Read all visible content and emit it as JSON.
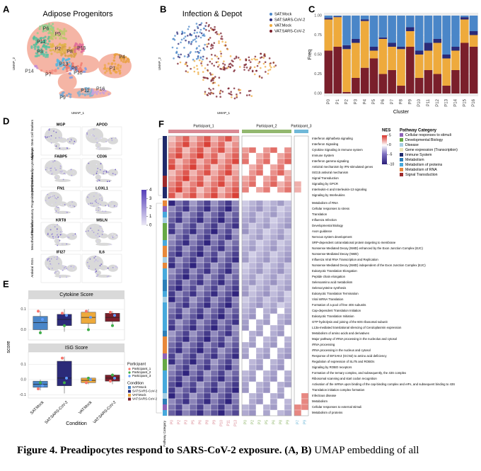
{
  "figure": {
    "A": {
      "label": "A",
      "title": "Adipose Progenitors",
      "xlabel": "UMAP_1",
      "ylabel": "UMAP_2",
      "clusters": [
        "P6",
        "P5",
        "P11",
        "P3",
        "P2",
        "P8",
        "P15",
        "P4",
        "P13",
        "P0",
        "P10",
        "P14",
        "P7",
        "P1",
        "P9",
        "P12",
        "P16"
      ]
    },
    "B": {
      "label": "B",
      "title": "Infection & Depot",
      "xlabel": "UMAP_1",
      "ylabel": "UMAP_2"
    },
    "C": {
      "label": "C"
    },
    "D": {
      "label": "D",
      "genes": [
        "MGP",
        "APOD",
        "FABP5",
        "CD36",
        "FN1",
        "LOXL1",
        "KRT8",
        "MSLN",
        "IFI27",
        "IL6"
      ],
      "groups": [
        "Adipocyte Stem Cell Markers",
        "Committed Preadipocyte Markers",
        "Fibro-inflammatory Progenitor (FIP) Markers",
        "Mesothelial Markers",
        "Antiviral ISGs"
      ],
      "colorbar": {
        "range": [
          0,
          4
        ],
        "ticks": [
          0,
          1,
          2,
          3,
          4
        ]
      }
    },
    "E": {
      "label": "E",
      "ylabel": "score",
      "xlabel": "Condition",
      "participant_title": "Participant",
      "condition_title": "Condition",
      "participants": [
        {
          "name": "Participant_1",
          "color": "#f8766d"
        },
        {
          "name": "Participant_2",
          "color": "#3fae49"
        },
        {
          "name": "Participant_3",
          "color": "#619cff"
        }
      ]
    },
    "F": {
      "label": "F",
      "participants": [
        {
          "name": "Participant_1",
          "color": "#d98a94",
          "columns": [
            "P0",
            "P2",
            "P3",
            "P5",
            "P6",
            "P8",
            "P9",
            "P10",
            "P11",
            "P13"
          ]
        },
        {
          "name": "Participant_2",
          "color": "#93b86f",
          "columns": [
            "P0",
            "P2",
            "P3",
            "P5",
            "P6",
            "P8",
            "P9"
          ]
        },
        {
          "name": "Participant_3",
          "color": "#6fb8d8",
          "columns": [
            "P7",
            "P9"
          ]
        }
      ],
      "rows": [
        "Interferon alpha/beta signaling",
        "Interferon Signaling",
        "Cytokine Signaling in Immune system",
        "Immune System",
        "Interferon gamma signaling",
        "Antiviral mechanism by IFN-stimulated genes",
        "ISG15 antiviral mechanism",
        "Signal Transduction",
        "Signaling by GPCR",
        "Interleukin-4 and Interleukin-13 signaling",
        "Signaling by Interleukins",
        "Metabolism of RNA",
        "Cellular responses to stress",
        "Translation",
        "Influenza Infection",
        "Developmental Biology",
        "Axon guidance",
        "Nervous system development",
        "SRP-dependent cotranslational protein targeting to membrane",
        "Nonsense Mediated Decay (NMD) enhanced by the Exon Junction Complex (EJC)",
        "Nonsense-Mediated Decay (NMD)",
        "Influenza Viral RNA Transcription and Replication",
        "Nonsense Mediated Decay (NMD) independent of the Exon Junction Complex (EJC)",
        "Eukaryotic Translation Elongation",
        "Peptide chain elongation",
        "Selenoamino acid metabolism",
        "Selenocysteine synthesis",
        "Eukaryotic Translation Termination",
        "Viral mRNA Translation",
        "Formation of a pool of free 40S subunits",
        "Cap-dependent Translation Initiation",
        "Eukaryotic Translation Initiation",
        "GTP hydrolysis and joining of the 60S ribosomal subunit",
        "L13a-mediated translational silencing of Ceruloplasmin expression",
        "Metabolism of amino acids and derivatives",
        "Major pathway of rRNA processing in the nucleolus and cytosol",
        "rRNA processing",
        "rRNA processing in the nucleus and cytosol",
        "Response of EIF2AK4 (GCN2) to amino acid deficiency",
        "Regulation of expression of SLITs and ROBOs",
        "Signaling by ROBO receptors",
        "Formation of the ternary complex, and subsequently, the 43S complex",
        "Ribosomal scanning and start codon recognition",
        "Activation of the mRNA upon binding of the cap-binding complex and eIFs, and subsequent binding to 43S",
        "Translation initiation complex formation",
        "Infectious disease",
        "Metabolism",
        "Cellular responses to external stimuli",
        "Metabolism of proteins"
      ],
      "nes_title": "NES",
      "nes_range": [
        -10,
        5
      ],
      "nes_ticks": [
        5,
        0,
        -5,
        -10
      ],
      "category_title": "Pathway Category",
      "annotation_label": "Pathway Category",
      "categories": [
        {
          "name": "Cellular responses to stimuli",
          "color": "#8e63b8"
        },
        {
          "name": "Developmental Biology",
          "color": "#66a845"
        },
        {
          "name": "Disease",
          "color": "#a6cee3"
        },
        {
          "name": "Gene expression (Transcription)",
          "color": "#ece6b8"
        },
        {
          "name": "Immune System",
          "color": "#1f2a6b"
        },
        {
          "name": "Metabolism",
          "color": "#2c7fb8"
        },
        {
          "name": "Metabolism of proteins",
          "color": "#47a9dc"
        },
        {
          "name": "Metabolism of RNA",
          "color": "#e8883a"
        },
        {
          "name": "Signal Transduction",
          "color": "#9e2a2b"
        }
      ]
    }
  },
  "chart_data": [
    {
      "type": "bar",
      "stacked": true,
      "ylabel": "Freq",
      "xlabel": "Cluster",
      "categories": [
        "P0",
        "P1",
        "P2",
        "P3",
        "P4",
        "P5",
        "P6",
        "P7",
        "P8",
        "P9",
        "P10",
        "P11",
        "P12",
        "P13",
        "P14",
        "P15",
        "P16"
      ],
      "ylim": [
        0,
        1
      ],
      "yticks": [
        {
          "value": 0,
          "label": "0.00"
        },
        {
          "value": 0.25,
          "label": "0.25"
        },
        {
          "value": 0.5,
          "label": "0.50"
        },
        {
          "value": 0.75,
          "label": "0.75"
        },
        {
          "value": 1,
          "label": "1.00"
        }
      ],
      "series": [
        {
          "name": "SAT:Mock",
          "color": "#4a86c8",
          "values": [
            0.03,
            0.01,
            0.38,
            0.3,
            0.05,
            0.4,
            0.28,
            0.35,
            0.4,
            0.15,
            0.45,
            0.35,
            0.3,
            0.5,
            0.4,
            0.02,
            0.2
          ]
        },
        {
          "name": "SAT:SARS-CoV-2",
          "color": "#2b2a78",
          "values": [
            0.02,
            0.01,
            0.05,
            0.05,
            0.02,
            0.05,
            0.02,
            0.05,
            0.03,
            0.05,
            0.05,
            0.1,
            0.05,
            0.05,
            0.05,
            0.03,
            0.05
          ]
        },
        {
          "name": "VAT:Mock",
          "color": "#eeaa3c",
          "values": [
            0.4,
            0.38,
            0.55,
            0.45,
            0.6,
            0.1,
            0.45,
            0.3,
            0.47,
            0.2,
            0.3,
            0.25,
            0.4,
            0.35,
            0.25,
            0.3,
            0.15
          ]
        },
        {
          "name": "VAT:SARS-CoV-2",
          "color": "#7a1f2b",
          "values": [
            0.55,
            0.6,
            0.02,
            0.2,
            0.33,
            0.45,
            0.25,
            0.3,
            0.1,
            0.6,
            0.2,
            0.3,
            0.25,
            0.1,
            0.3,
            0.65,
            0.6
          ]
        }
      ]
    },
    {
      "type": "box",
      "title": "Cytokine Score",
      "ylim": [
        -0.05,
        0.15
      ],
      "yticks": [
        {
          "value": 0,
          "label": "0.0"
        },
        0.1
      ],
      "boxes": [
        {
          "low": -0.02,
          "q1": 0.0,
          "median": 0.035,
          "q3": 0.065,
          "high": 0.09
        },
        {
          "low": -0.01,
          "q1": 0.02,
          "median": 0.05,
          "q3": 0.075,
          "high": 0.1
        },
        {
          "low": 0.0,
          "q1": 0.03,
          "median": 0.06,
          "q3": 0.085,
          "high": 0.1
        },
        {
          "low": 0.02,
          "q1": 0.04,
          "median": 0.06,
          "q3": 0.08,
          "high": 0.09
        }
      ],
      "points": [
        [
          0.09,
          -0.015,
          0.05
        ],
        [
          0.08,
          0.02,
          0.07
        ],
        [
          0.09,
          0.0,
          0.06
        ],
        [
          0.085,
          0.02,
          0.07
        ]
      ]
    },
    {
      "type": "box",
      "title": "ISG Score",
      "ylim": [
        -0.12,
        0.18
      ],
      "yticks": [
        -0.1,
        {
          "value": 0,
          "label": "0.0"
        },
        0.1
      ],
      "categories": [
        "SAT:Mock",
        "SAT:SARS-CoV-2",
        "VAT:Mock",
        "VAT:SARS-CoV-2"
      ],
      "series": [
        {
          "name": "SAT:Mock",
          "color": "#4a86c8"
        },
        {
          "name": "SAT:SARS-CoV-2",
          "color": "#2b2a78"
        },
        {
          "name": "VAT:Mock",
          "color": "#eeaa3c"
        },
        {
          "name": "VAT:SARS-CoV-2",
          "color": "#7a1f2b"
        }
      ],
      "boxes": [
        {
          "low": -0.07,
          "q1": -0.05,
          "median": -0.03,
          "q3": -0.01,
          "high": 0.0
        },
        {
          "low": -0.09,
          "q1": -0.04,
          "median": 0.01,
          "q3": 0.12,
          "high": 0.15
        },
        {
          "low": -0.03,
          "q1": -0.02,
          "median": -0.005,
          "q3": 0.01,
          "high": 0.015
        },
        {
          "low": -0.03,
          "q1": -0.01,
          "median": 0.01,
          "q3": 0.03,
          "high": 0.04
        }
      ],
      "points": [
        [
          -0.06,
          -0.02,
          -0.04
        ],
        [
          0.14,
          -0.02,
          0.01
        ],
        [
          -0.02,
          0.01,
          0.0
        ],
        [
          -0.01,
          0.03,
          0.01
        ]
      ]
    }
  ],
  "caption": {
    "bold": "Figure 4. Preadipocytes respond to SARS-CoV-2 exposure. (A, B)",
    "text": " UMAP embedding of all"
  }
}
